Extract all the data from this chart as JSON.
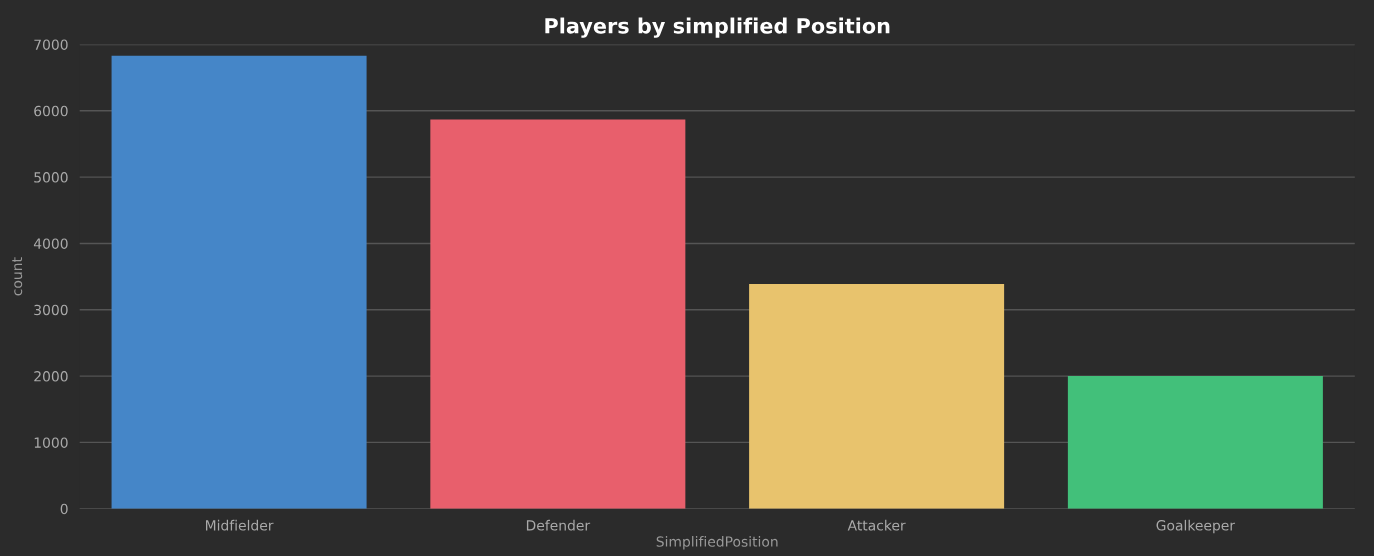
{
  "chart_data": {
    "type": "bar",
    "title": "Players by simplified Position",
    "xlabel": "SimplifiedPosition",
    "ylabel": "count",
    "categories": [
      "Midfielder",
      "Defender",
      "Attacker",
      "Goalkeeper"
    ],
    "values": [
      6830,
      5870,
      3390,
      2000
    ],
    "colors": [
      "#4586c8",
      "#e85f6c",
      "#e8c36d",
      "#42c07a"
    ],
    "ylim": [
      0,
      7000
    ],
    "yticks": [
      0,
      1000,
      2000,
      3000,
      4000,
      5000,
      6000,
      7000
    ],
    "grid": "y",
    "legend": false
  }
}
